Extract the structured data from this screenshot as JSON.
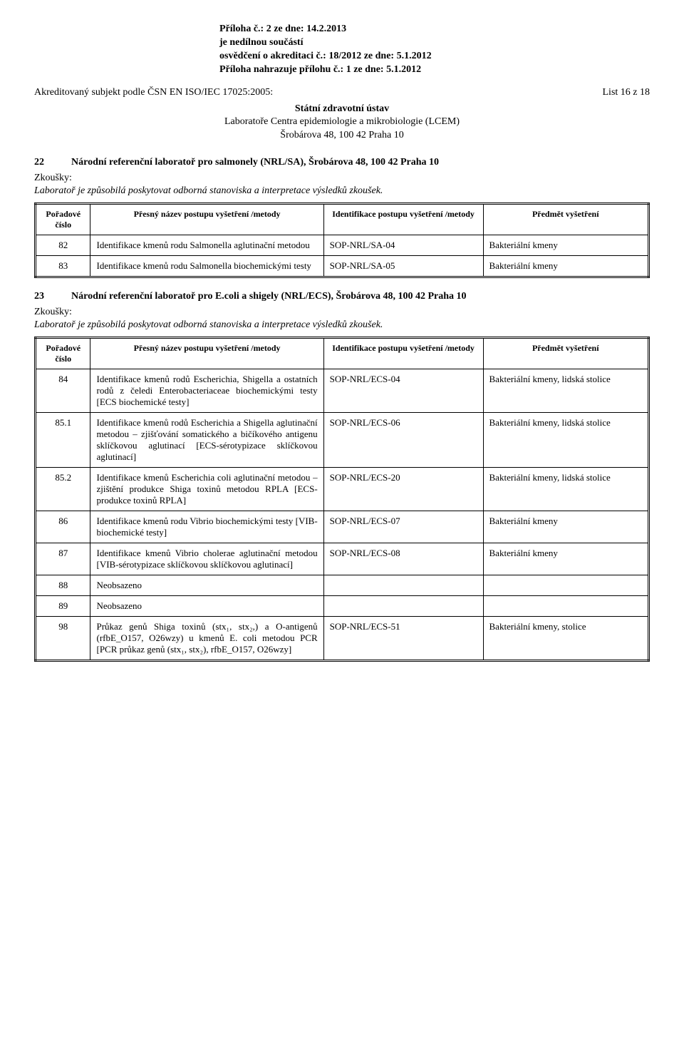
{
  "header": {
    "line1": "Příloha č.: 2  ze dne: 14.2.2013",
    "line2": "je nedílnou součástí",
    "line3": "osvědčení o akreditaci č.: 18/2012 ze dne: 5.1.2012",
    "line4": "Příloha nahrazuje přílohu č.: 1  ze dne: 5.1.2012"
  },
  "list_label": "List 16 z 18",
  "subject_line": "Akreditovaný subjekt podle ČSN EN ISO/IEC 17025:2005:",
  "center": {
    "l1": "Státní zdravotní ústav",
    "l2": "Laboratoře Centra epidemiologie a mikrobiologie (LCEM)",
    "l3": "Šrobárova 48, 100 42 Praha 10"
  },
  "zkousky": "Zkoušky:",
  "lab_note": "Laboratoř je způsobilá poskytovat odborná stanoviska a interpretace výsledků zkoušek.",
  "table_headers": {
    "h1": "Pořadové číslo",
    "h2": "Přesný název postupu vyšetření /metody",
    "h3": "Identifikace postupu vyšetření /metody",
    "h4": "Předmět vyšetření"
  },
  "section22": {
    "num": "22",
    "title": "Národní referenční laboratoř pro salmonely (NRL/SA), Šrobárova 48, 100 42 Praha 10",
    "rows": [
      {
        "n": "82",
        "name": "Identifikace kmenů rodu Salmonella aglutinační metodou",
        "id": "SOP-NRL/SA-04",
        "subj": "Bakteriální kmeny"
      },
      {
        "n": "83",
        "name": "Identifikace kmenů rodu Salmonella biochemickými testy",
        "id": "SOP-NRL/SA-05",
        "subj": "Bakteriální kmeny"
      }
    ]
  },
  "section23": {
    "num": "23",
    "title": "Národní referenční laboratoř pro E.coli a shigely (NRL/ECS), Šrobárova 48, 100 42 Praha 10",
    "rows": [
      {
        "n": "84",
        "name": "Identifikace kmenů rodů Escherichia, Shigella a ostatních rodů z čeledi Enterobacteriaceae biochemickými testy [ECS biochemické testy]",
        "id": "SOP-NRL/ECS-04",
        "subj": "Bakteriální kmeny, lidská stolice"
      },
      {
        "n": "85.1",
        "name": "Identifikace kmenů rodů Escherichia a Shigella aglutinační metodou – zjišťování somatického a bičíkového antigenu sklíčkovou aglutinací [ECS-sérotypizace sklíčkovou aglutinací]",
        "id": "SOP-NRL/ECS-06",
        "subj": "Bakteriální kmeny, lidská stolice"
      },
      {
        "n": "85.2",
        "name": "Identifikace kmenů Escherichia coli aglutinační metodou – zjištění produkce Shiga toxinů metodou RPLA [ECS-produkce toxinů RPLA]",
        "id": "SOP-NRL/ECS-20",
        "subj": "Bakteriální kmeny, lidská stolice"
      },
      {
        "n": "86",
        "name": "Identifikace kmenů rodu Vibrio biochemickými testy [VIB-biochemické testy]",
        "id": "SOP-NRL/ECS-07",
        "subj": "Bakteriální kmeny"
      },
      {
        "n": "87",
        "name": "Identifikace kmenů Vibrio cholerae aglutinační metodou [VIB-sérotypizace sklíčkovou sklíčkovou aglutinací]",
        "id": "SOP-NRL/ECS-08",
        "subj": "Bakteriální kmeny"
      },
      {
        "n": "88",
        "name": "Neobsazeno",
        "id": "",
        "subj": ""
      },
      {
        "n": "89",
        "name": "Neobsazeno",
        "id": "",
        "subj": ""
      },
      {
        "n": "98",
        "name": "Průkaz genů Shiga toxinů (stx₁, stx₂,) a O-antigenů (rfbE_O157, O26wzy) u kmenů E. coli metodou PCR [PCR průkaz genů (stx₁, stx₂), rfbE_O157, O26wzy]",
        "id": "SOP-NRL/ECS-51",
        "subj": "Bakteriální kmeny, stolice"
      }
    ]
  }
}
